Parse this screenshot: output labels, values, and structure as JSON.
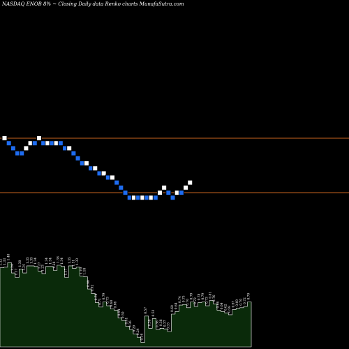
{
  "title": "NASDAQ ENOB 8% ~  Closing Daily data  Renko  charts MunafaSutra.com",
  "colors": {
    "background": "#000000",
    "brick_up": "#ffffff",
    "brick_down": "#1e6cf0",
    "brick_outline": "#000000",
    "level_line": "#c8641e",
    "volume_fill": "#0a2a0a",
    "volume_edge": "#ffffff"
  },
  "chart_data": [
    {
      "type": "renko",
      "title": "NASDAQ ENOB 8% ~  Closing Daily data  Renko  charts MunafaSutra.com",
      "levels": [
        1.36,
        0.71
      ],
      "bricks": [
        {
          "v": 1.36,
          "d": "up"
        },
        {
          "v": 1.3,
          "d": "down"
        },
        {
          "v": 1.24,
          "d": "down"
        },
        {
          "v": 1.18,
          "d": "down"
        },
        {
          "v": 1.18,
          "d": "down"
        },
        {
          "v": 1.24,
          "d": "up"
        },
        {
          "v": 1.3,
          "d": "up"
        },
        {
          "v": 1.3,
          "d": "down"
        },
        {
          "v": 1.36,
          "d": "up"
        },
        {
          "v": 1.3,
          "d": "down"
        },
        {
          "v": 1.3,
          "d": "up"
        },
        {
          "v": 1.3,
          "d": "down"
        },
        {
          "v": 1.3,
          "d": "up"
        },
        {
          "v": 1.3,
          "d": "down"
        },
        {
          "v": 1.24,
          "d": "down"
        },
        {
          "v": 1.24,
          "d": "up"
        },
        {
          "v": 1.18,
          "d": "down"
        },
        {
          "v": 1.12,
          "d": "down"
        },
        {
          "v": 1.06,
          "d": "down"
        },
        {
          "v": 1.06,
          "d": "up"
        },
        {
          "v": 1.0,
          "d": "down"
        },
        {
          "v": 1.0,
          "d": "up"
        },
        {
          "v": 0.94,
          "d": "down"
        },
        {
          "v": 0.94,
          "d": "up"
        },
        {
          "v": 0.89,
          "d": "down"
        },
        {
          "v": 0.89,
          "d": "up"
        },
        {
          "v": 0.83,
          "d": "down"
        },
        {
          "v": 0.77,
          "d": "down"
        },
        {
          "v": 0.71,
          "d": "down"
        },
        {
          "v": 0.65,
          "d": "down"
        },
        {
          "v": 0.65,
          "d": "up"
        },
        {
          "v": 0.65,
          "d": "down"
        },
        {
          "v": 0.65,
          "d": "up"
        },
        {
          "v": 0.65,
          "d": "down"
        },
        {
          "v": 0.65,
          "d": "up"
        },
        {
          "v": 0.65,
          "d": "down"
        },
        {
          "v": 0.71,
          "d": "up"
        },
        {
          "v": 0.77,
          "d": "up"
        },
        {
          "v": 0.71,
          "d": "down"
        },
        {
          "v": 0.65,
          "d": "down"
        },
        {
          "v": 0.71,
          "d": "up"
        },
        {
          "v": 0.71,
          "d": "down"
        },
        {
          "v": 0.77,
          "d": "up"
        },
        {
          "v": 0.83,
          "d": "up"
        }
      ]
    },
    {
      "type": "area",
      "labels": [
        "1.32",
        "1.33",
        "1.40",
        "1.24",
        "1.17",
        "1.30",
        "1.24",
        "1.35",
        "1.35",
        "1.34",
        "1.27",
        "1.23",
        "1.34",
        "1.34",
        "1.28",
        "1.36",
        "1.34",
        "1.17",
        "1.35",
        "1.31",
        "1.33",
        "1.19",
        "1.18",
        "0.99",
        "0.92",
        "0.78",
        "0.71",
        "0.79",
        "0.73",
        "0.68",
        "0.66",
        "0.54",
        "0.50",
        "0.41",
        "0.36",
        "0.29",
        "0.24",
        "0.16",
        "0.57",
        "0.38",
        "0.53",
        "0.36",
        "0.38",
        "0.37",
        "0.33",
        "0.60",
        "0.64",
        "0.74",
        "0.75",
        "0.70",
        "0.79",
        "0.72",
        "0.78",
        "0.79",
        "0.73",
        "0.81",
        "0.76",
        "0.66",
        "0.64",
        "0.62",
        "0.59",
        "0.67",
        "0.69",
        "0.70",
        "0.72",
        "0.79"
      ],
      "values": [
        1.32,
        1.33,
        1.4,
        1.24,
        1.17,
        1.3,
        1.24,
        1.35,
        1.35,
        1.34,
        1.27,
        1.23,
        1.34,
        1.34,
        1.28,
        1.36,
        1.34,
        1.17,
        1.35,
        1.31,
        1.33,
        1.19,
        1.18,
        0.99,
        0.92,
        0.78,
        0.71,
        0.79,
        0.73,
        0.68,
        0.66,
        0.54,
        0.5,
        0.41,
        0.36,
        0.29,
        0.24,
        0.16,
        0.57,
        0.38,
        0.53,
        0.36,
        0.38,
        0.37,
        0.33,
        0.6,
        0.64,
        0.74,
        0.75,
        0.7,
        0.79,
        0.72,
        0.78,
        0.79,
        0.73,
        0.81,
        0.76,
        0.66,
        0.64,
        0.62,
        0.59,
        0.67,
        0.69,
        0.7,
        0.72,
        0.79
      ]
    }
  ]
}
